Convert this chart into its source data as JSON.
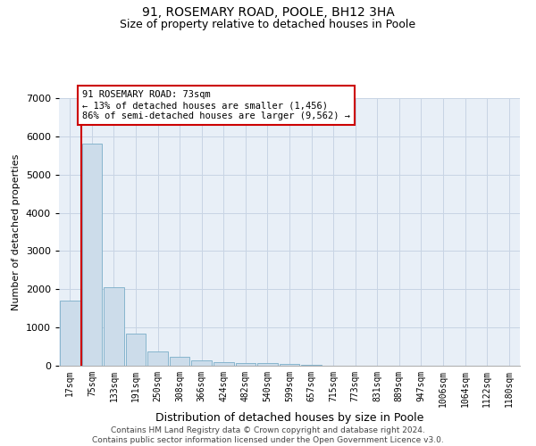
{
  "title": "91, ROSEMARY ROAD, POOLE, BH12 3HA",
  "subtitle": "Size of property relative to detached houses in Poole",
  "xlabel": "Distribution of detached houses by size in Poole",
  "ylabel": "Number of detached properties",
  "bin_labels": [
    "17sqm",
    "75sqm",
    "133sqm",
    "191sqm",
    "250sqm",
    "308sqm",
    "366sqm",
    "424sqm",
    "482sqm",
    "540sqm",
    "599sqm",
    "657sqm",
    "715sqm",
    "773sqm",
    "831sqm",
    "889sqm",
    "947sqm",
    "1006sqm",
    "1064sqm",
    "1122sqm",
    "1180sqm"
  ],
  "bar_values": [
    1700,
    5800,
    2050,
    850,
    380,
    230,
    130,
    90,
    75,
    80,
    50,
    20,
    10,
    5,
    3,
    2,
    1,
    1,
    1,
    1,
    1
  ],
  "bar_color": "#ccdcea",
  "bar_edge_color": "#7aaec8",
  "property_line_x": 0.5,
  "annotation_text": "91 ROSEMARY ROAD: 73sqm\n← 13% of detached houses are smaller (1,456)\n86% of semi-detached houses are larger (9,562) →",
  "annotation_box_facecolor": "#ffffff",
  "annotation_box_edgecolor": "#cc0000",
  "property_line_color": "#cc0000",
  "grid_color": "#c8d4e4",
  "background_color": "#ffffff",
  "plot_bg_color": "#e8eff7",
  "ylim": [
    0,
    7000
  ],
  "yticks": [
    0,
    1000,
    2000,
    3000,
    4000,
    5000,
    6000,
    7000
  ],
  "footer_text": "Contains HM Land Registry data © Crown copyright and database right 2024.\nContains public sector information licensed under the Open Government Licence v3.0.",
  "title_fontsize": 10,
  "subtitle_fontsize": 9,
  "ylabel_fontsize": 8,
  "xlabel_fontsize": 9,
  "tick_fontsize": 7,
  "annotation_fontsize": 7.5,
  "footer_fontsize": 6.5
}
